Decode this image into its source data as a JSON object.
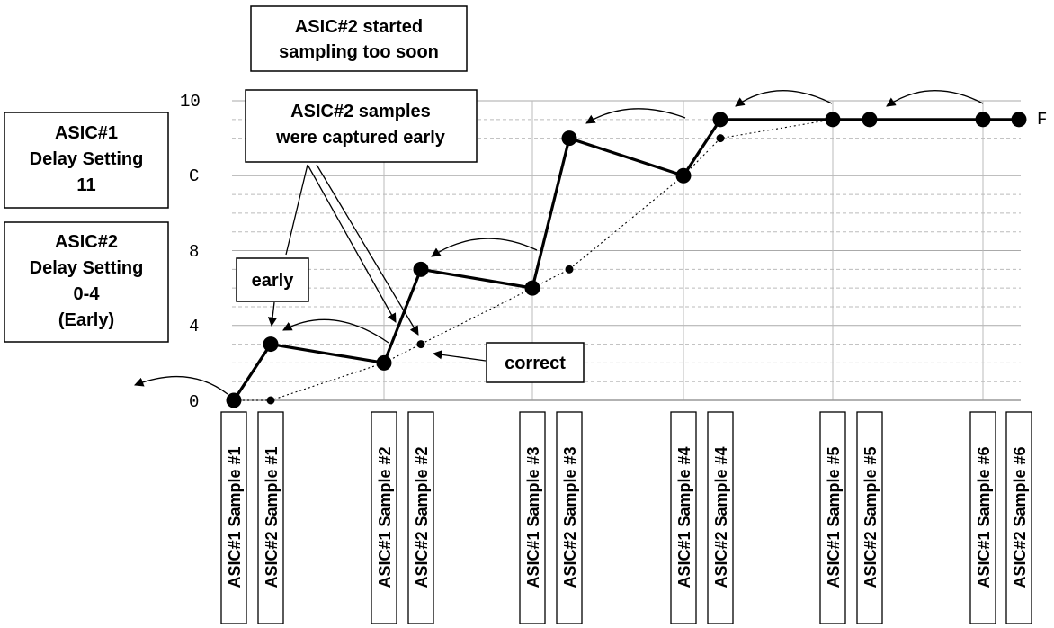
{
  "annotations": {
    "top_note": [
      "ASIC#2 started",
      "sampling too soon"
    ],
    "captured_note": [
      "ASIC#2 samples",
      "were captured early"
    ],
    "asic1_setting": [
      "ASIC#1",
      "Delay Setting",
      "11"
    ],
    "asic2_setting": [
      "ASIC#2",
      "Delay Setting",
      "0-4",
      "(Early)"
    ],
    "early_label": "early",
    "correct_label": "correct",
    "end_label": "F"
  },
  "chart_data": {
    "type": "line",
    "y_ticks": [
      "0",
      "4",
      "8",
      "C",
      "10"
    ],
    "ylim": [
      0,
      16
    ],
    "grid": true,
    "categories": [
      "ASIC#1 Sample #1",
      "ASIC#2 Sample #1",
      "ASIC#1 Sample #2",
      "ASIC#2 Sample #2",
      "ASIC#1 Sample #3",
      "ASIC#2 Sample #3",
      "ASIC#1 Sample #4",
      "ASIC#2 Sample #4",
      "ASIC#1 Sample #5",
      "ASIC#2 Sample #5",
      "ASIC#1 Sample #6",
      "ASIC#2 Sample #6"
    ],
    "series": [
      {
        "values": [
          0,
          3,
          2,
          7,
          6,
          14,
          12,
          15,
          15,
          15,
          15,
          15
        ]
      },
      {
        "values": [
          0,
          0,
          2,
          3,
          6,
          7,
          12,
          14,
          15,
          15,
          15,
          15
        ]
      }
    ]
  }
}
